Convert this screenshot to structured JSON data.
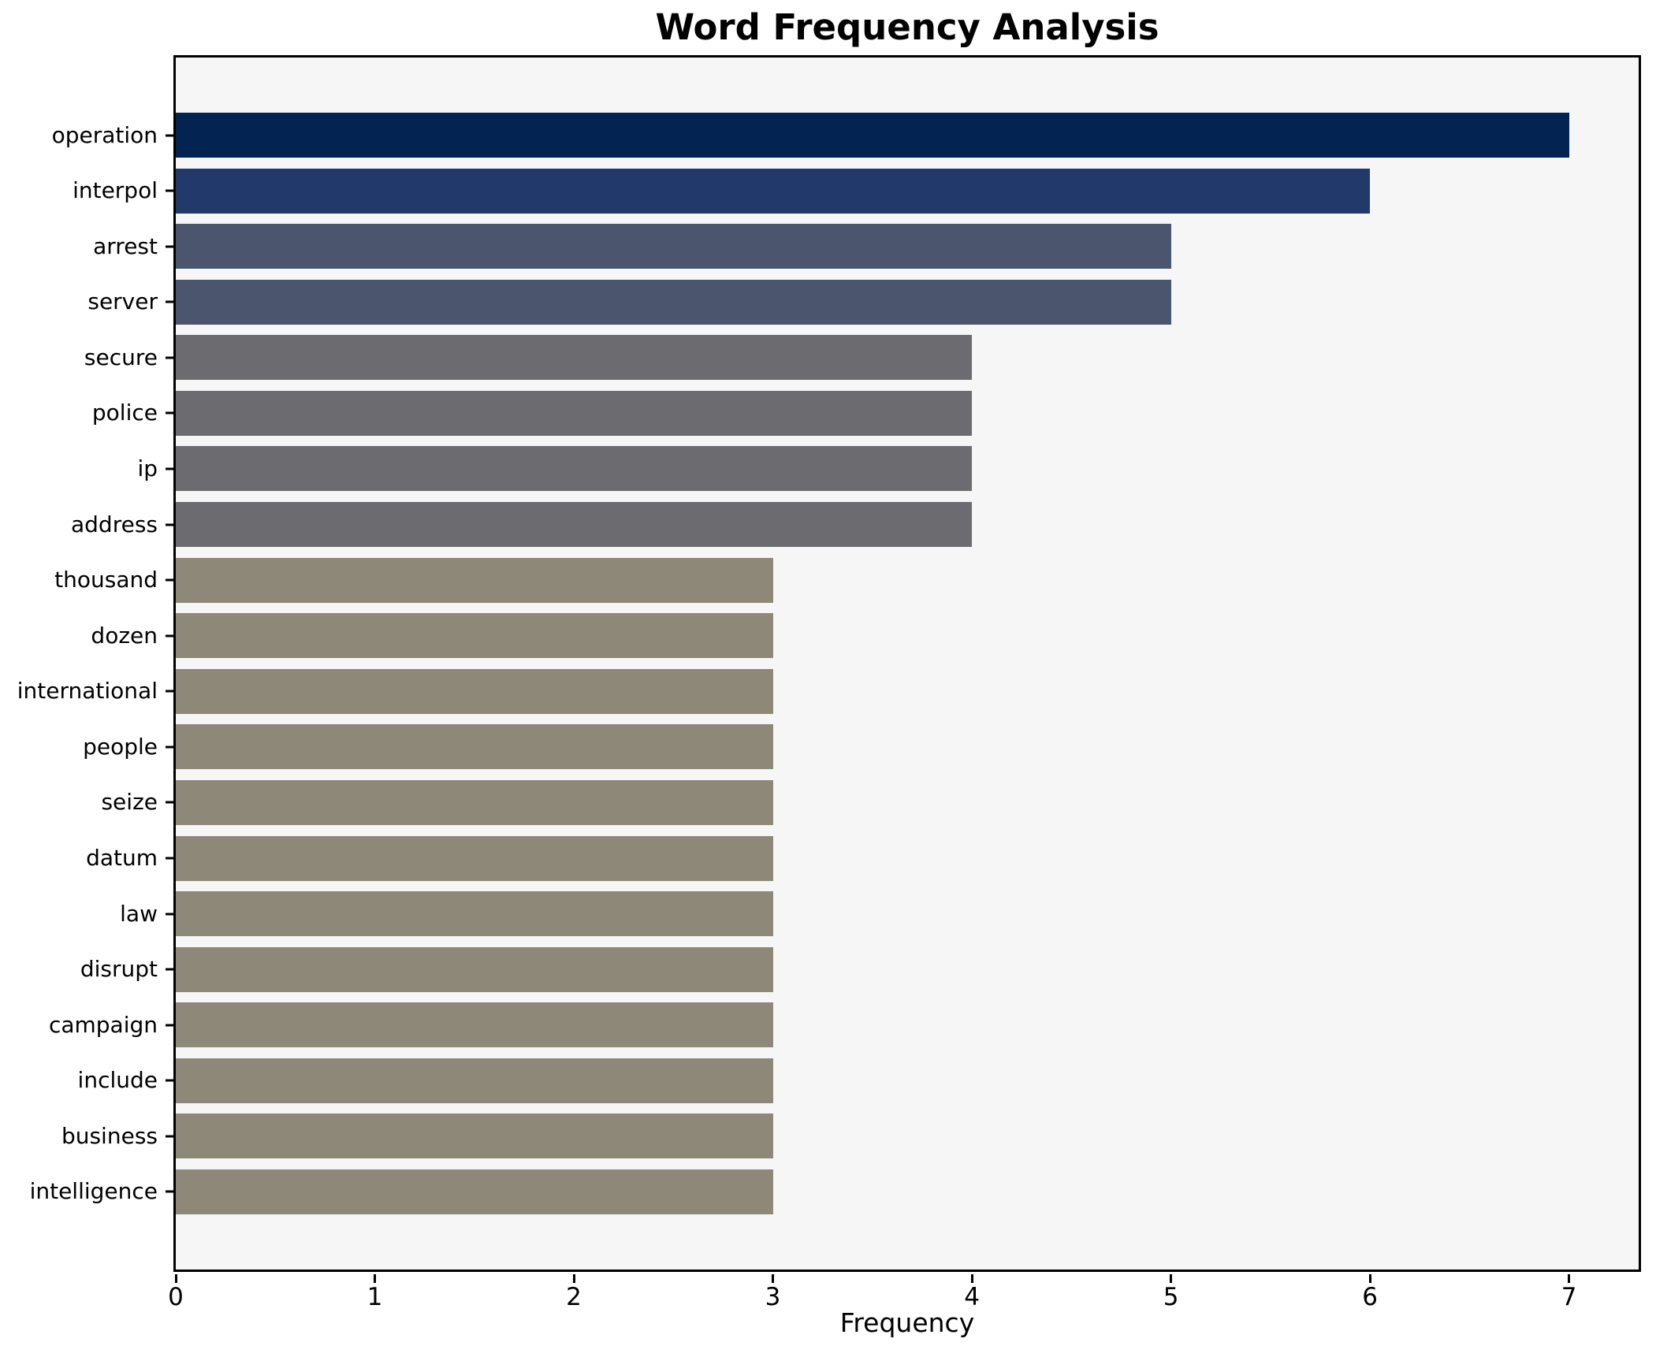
{
  "chart_data": {
    "type": "bar",
    "orientation": "horizontal",
    "title": "Word Frequency Analysis",
    "xlabel": "Frequency",
    "ylabel": "",
    "categories": [
      "operation",
      "interpol",
      "arrest",
      "server",
      "secure",
      "police",
      "ip",
      "address",
      "thousand",
      "dozen",
      "international",
      "people",
      "seize",
      "datum",
      "law",
      "disrupt",
      "campaign",
      "include",
      "business",
      "intelligence"
    ],
    "values": [
      7,
      6,
      5,
      5,
      4,
      4,
      4,
      4,
      3,
      3,
      3,
      3,
      3,
      3,
      3,
      3,
      3,
      3,
      3,
      3
    ],
    "bar_colors": [
      "#032450",
      "#22396b",
      "#4c556e",
      "#4c556e",
      "#6b6b70",
      "#6b6b70",
      "#6b6b70",
      "#6b6b70",
      "#8d8877",
      "#8d8877",
      "#8d8877",
      "#8d8877",
      "#8d8877",
      "#8d8877",
      "#8d8877",
      "#8d8877",
      "#8d8877",
      "#8d8877",
      "#8d8877",
      "#8d8877"
    ],
    "xlim": [
      0,
      7.35
    ],
    "x_ticks": [
      0,
      1,
      2,
      3,
      4,
      5,
      6,
      7
    ],
    "grid": false,
    "legend_position": "none",
    "colors": {
      "plot_background": "#f6f6f7",
      "figure_background": "#ffffff",
      "spine": "#000000",
      "text": "#000000"
    }
  }
}
